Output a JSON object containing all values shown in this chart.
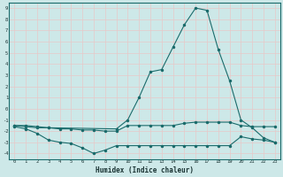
{
  "xlabel": "Humidex (Indice chaleur)",
  "bg_color": "#cde8e8",
  "grid_color": "#e8c8c8",
  "line_color": "#1a6b6b",
  "xlim": [
    -0.5,
    23.5
  ],
  "ylim": [
    -4.5,
    9.5
  ],
  "xticks": [
    0,
    1,
    2,
    3,
    4,
    5,
    6,
    7,
    8,
    9,
    10,
    11,
    12,
    13,
    14,
    15,
    16,
    17,
    18,
    19,
    20,
    21,
    22,
    23
  ],
  "yticks": [
    -4,
    -3,
    -2,
    -1,
    0,
    1,
    2,
    3,
    4,
    5,
    6,
    7,
    8,
    9
  ],
  "line1_x": [
    0,
    1,
    2,
    3,
    4,
    5,
    6,
    7,
    8,
    9,
    10,
    11,
    12,
    13,
    14,
    15,
    16,
    17,
    18,
    19,
    20,
    21,
    22,
    23
  ],
  "line1_y": [
    -1.5,
    -1.6,
    -1.7,
    -1.7,
    -1.8,
    -1.8,
    -1.9,
    -1.9,
    -2.0,
    -2.0,
    -1.5,
    -1.5,
    -1.5,
    -1.5,
    -1.5,
    -1.3,
    -1.2,
    -1.2,
    -1.2,
    -1.2,
    -1.5,
    -1.6,
    -1.6,
    -1.6
  ],
  "line2_x": [
    0,
    1,
    2,
    3,
    4,
    5,
    6,
    7,
    8,
    9,
    10,
    11,
    12,
    13,
    14,
    15,
    16,
    17,
    18,
    19,
    20,
    21,
    22,
    23
  ],
  "line2_y": [
    -1.6,
    -1.8,
    -2.2,
    -2.8,
    -3.0,
    -3.1,
    -3.5,
    -4.0,
    -3.7,
    -3.3,
    -3.3,
    -3.3,
    -3.3,
    -3.3,
    -3.3,
    -3.3,
    -3.3,
    -3.3,
    -3.3,
    -3.3,
    -2.5,
    -2.7,
    -2.8,
    -3.0
  ],
  "line3_x": [
    0,
    1,
    2,
    3,
    9,
    10,
    11,
    12,
    13,
    14,
    15,
    16,
    17,
    18,
    19,
    20,
    21,
    22,
    23
  ],
  "line3_y": [
    -1.5,
    -1.5,
    -1.6,
    -1.7,
    -1.8,
    -1.0,
    1.0,
    3.3,
    3.5,
    5.5,
    7.5,
    9.0,
    8.8,
    5.3,
    2.5,
    -1.0,
    -1.7,
    -2.6,
    -3.0
  ]
}
